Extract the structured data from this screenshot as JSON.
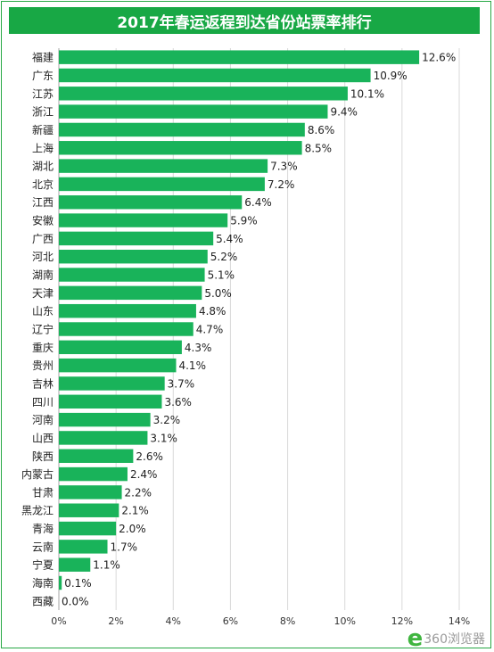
{
  "chart_data": {
    "type": "bar",
    "orientation": "horizontal",
    "title": "2017年春运返程到达省份站票率排行",
    "categories": [
      "福建",
      "广东",
      "江苏",
      "浙江",
      "新疆",
      "上海",
      "湖北",
      "北京",
      "江西",
      "安徽",
      "广西",
      "河北",
      "湖南",
      "天津",
      "山东",
      "辽宁",
      "重庆",
      "贵州",
      "吉林",
      "四川",
      "河南",
      "山西",
      "陕西",
      "内蒙古",
      "甘肃",
      "黑龙江",
      "青海",
      "云南",
      "宁夏",
      "海南",
      "西藏"
    ],
    "values": [
      12.6,
      10.9,
      10.1,
      9.4,
      8.6,
      8.5,
      7.3,
      7.2,
      6.4,
      5.9,
      5.4,
      5.2,
      5.1,
      5.0,
      4.8,
      4.7,
      4.3,
      4.1,
      3.7,
      3.6,
      3.2,
      3.1,
      2.6,
      2.4,
      2.2,
      2.1,
      2.0,
      1.7,
      1.1,
      0.1,
      0.0
    ],
    "value_labels": [
      "12.6%",
      "10.9%",
      "10.1%",
      "9.4%",
      "8.6%",
      "8.5%",
      "7.3%",
      "7.2%",
      "6.4%",
      "5.9%",
      "5.4%",
      "5.2%",
      "5.1%",
      "5.0%",
      "4.8%",
      "4.7%",
      "4.3%",
      "4.1%",
      "3.7%",
      "3.6%",
      "3.2%",
      "3.1%",
      "2.6%",
      "2.4%",
      "2.2%",
      "2.1%",
      "2.0%",
      "1.7%",
      "1.1%",
      "0.1%",
      "0.0%"
    ],
    "xlim": [
      0,
      14
    ],
    "x_ticks": [
      0,
      2,
      4,
      6,
      8,
      10,
      12,
      14
    ],
    "x_tick_labels": [
      "0%",
      "2%",
      "4%",
      "6%",
      "8%",
      "10%",
      "12%",
      "14%"
    ],
    "xlabel": "",
    "ylabel": "",
    "grid": true,
    "legend": "none",
    "bar_color": "#19b35a"
  },
  "colors": {
    "title_bg": "#18a845",
    "bar": "#19b35a",
    "border": "#27a844",
    "grid": "#d9d9d9"
  },
  "watermark": {
    "icon": "e",
    "text": "360浏览器"
  }
}
